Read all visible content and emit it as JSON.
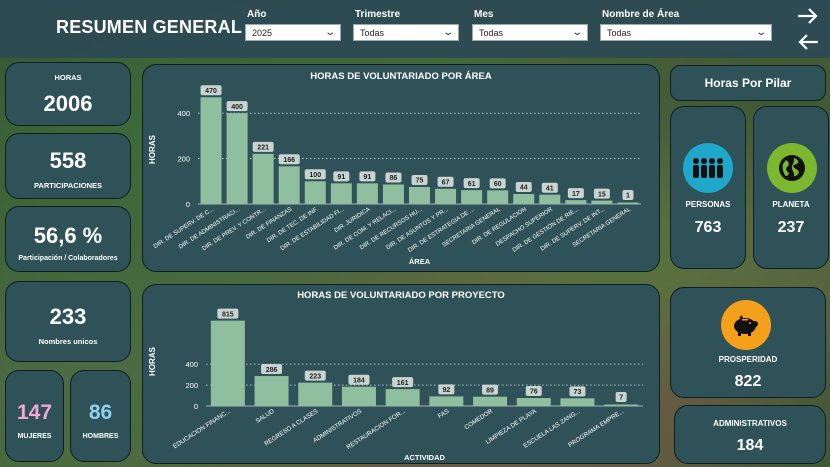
{
  "header": {
    "title": "RESUMEN GENERAL",
    "filters": [
      {
        "label": "Año",
        "value": "2025"
      },
      {
        "label": "Trimestre",
        "value": "Todas"
      },
      {
        "label": "Mes",
        "value": "Todas"
      },
      {
        "label": "Nombre de Área",
        "value": "Todas"
      }
    ]
  },
  "kpis": {
    "horas": {
      "label": "HORAS",
      "value": "2006"
    },
    "participaciones": {
      "label": "PARTICIPACIONES",
      "value": "558"
    },
    "participacion_colab": {
      "label": "Participación / Colaboradores",
      "value": "56,6 %"
    },
    "nombres_unicos": {
      "label": "Nombres unicos",
      "value": "233"
    },
    "mujeres": {
      "label": "MUJERES",
      "value": "147"
    },
    "hombres": {
      "label": "HOMBRES",
      "value": "86"
    }
  },
  "pilares": {
    "title": "Horas Por Pilar",
    "personas": {
      "label": "PERSONAS",
      "value": "763",
      "icon": "people-icon",
      "color": "#1fa8c9"
    },
    "planeta": {
      "label": "PLANETA",
      "value": "237",
      "icon": "globe-icon",
      "color": "#7cb82f"
    },
    "prosperidad": {
      "label": "PROSPERIDAD",
      "value": "822",
      "icon": "piggy-bank-icon",
      "color": "#f5a01a"
    },
    "administrativos": {
      "label": "ADMINISTRATIVOS",
      "value": "184"
    }
  },
  "colors": {
    "bar": "#8fbf9f",
    "label_bg": "#c9d4d1",
    "mujeres": "#f4a6d7",
    "hombres": "#8fd0f0"
  },
  "chart_data": [
    {
      "type": "bar",
      "title": "HORAS DE VOLUNTARIADO POR ÁREA",
      "xlabel": "ÁREA",
      "ylabel": "HORAS",
      "ylim": [
        0,
        480
      ],
      "yticks": [
        0,
        200,
        400
      ],
      "grid": true,
      "categories": [
        "DIR. DE SUPERV. DE C...",
        "DIR. DE ADMINISTRACI...",
        "DIR. DE PREV. Y CONTR...",
        "DIR. DE FINANZAS",
        "DIR. DE TEC. DE INF.",
        "DIR. DE ESTABILIDAD FI...",
        "DIR. JURIDICA",
        "DIR. DE COM. Y RELACI...",
        "DIR. DE RECURSOS HU...",
        "DIR. DE ASUNTOS Y PR...",
        "DIR. DE ESTRATEGIA DE ...",
        "SECRETARIA GENERAL",
        "DIR. DE REGULACION",
        "DESPACHO SUPERIOR",
        "DIR. DE GESTIÓN DE RIE...",
        "DIR. DE SUPERV. DE INT...",
        "SECRETARIA GENERAL"
      ],
      "values": [
        470,
        400,
        221,
        166,
        100,
        91,
        91,
        86,
        75,
        67,
        61,
        60,
        44,
        41,
        17,
        15,
        1
      ]
    },
    {
      "type": "bar",
      "title": "HORAS DE VOLUNTARIADO POR PROYECTO",
      "xlabel": "ACTIVIDAD",
      "ylabel": "HORAS",
      "ylim": [
        0,
        850
      ],
      "yticks": [
        0,
        200,
        400
      ],
      "grid": true,
      "categories": [
        "EDUCACION FINANC...",
        "SALUD",
        "REGRESO A CLASES",
        "ADMINISTRATIVOS",
        "RESTAURACION FOR...",
        "FAS",
        "COMEDOR",
        "LIMPIEZA DE PLAYA",
        "ESCUELA LAS ZANG...",
        "PROGRAMA EMPRE..."
      ],
      "values": [
        815,
        286,
        223,
        184,
        161,
        92,
        89,
        76,
        73,
        7
      ]
    }
  ]
}
